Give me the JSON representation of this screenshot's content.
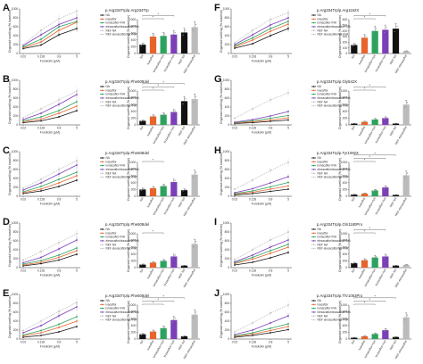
{
  "figure": {
    "x_axis_label": "Forskolin (μM)",
    "y_axis_label": "Organoid swelling (% baseline)",
    "colors": {
      "NA": "#111111",
      "ivacaftor": "#e8642b",
      "lumacaftor+IVA": "#2ca25f",
      "elexacaftor/tezacaftor+IVA": "#7b3fb8",
      "REF": "#bbbbbb"
    }
  },
  "chart_data": [
    {
      "letter": "A",
      "title": "p.Arg334Trp/p.Arg334Trp",
      "type": "line",
      "x_ticks": [
        "0.02",
        "0.128",
        "0.8",
        "5"
      ],
      "series": [
        {
          "name": "NA",
          "values": [
            110,
            190,
            420,
            560
          ]
        },
        {
          "name": "ivacaftor",
          "values": [
            130,
            260,
            520,
            700
          ]
        },
        {
          "name": "lumacaftor+IVA",
          "values": [
            150,
            320,
            600,
            720
          ]
        },
        {
          "name": "elexacaftor/tezacaftor+IVA",
          "values": [
            180,
            420,
            650,
            800
          ]
        },
        {
          "name": "REF",
          "values": [
            200,
            520,
            780,
            950
          ]
        }
      ],
      "bars": [
        260,
        500,
        520,
        560,
        620,
        780
      ],
      "bar_labels": [
        "NA",
        "ivacaftor",
        "lumacaftor+IVA",
        "tezacaftor+IVA",
        "REF NA",
        "REF elexacaftor"
      ],
      "legend": [
        "NA",
        "ivacaftor",
        "lumacaftor+IVA",
        "elexacaftor/tezacaftor+IVA",
        "REF NA",
        "REF elexacaftor/tez+IVA"
      ],
      "line_ylim": [
        0,
        1000
      ],
      "line_yticks": [
        "0",
        "200",
        "400",
        "600",
        "800",
        "1000"
      ],
      "bar_ylim": [
        0,
        1000
      ],
      "bar_yticks": [
        "0",
        "200",
        "400",
        "600",
        "800",
        "1000"
      ],
      "stars": [
        "*",
        "*"
      ]
    },
    {
      "letter": "B",
      "title": "p.Arg334Trp/p.Phe508del",
      "type": "line",
      "x_ticks": [
        "0.02",
        "0.128",
        "0.8",
        "5"
      ],
      "series": [
        {
          "name": "NA",
          "values": [
            50,
            90,
            180,
            320
          ]
        },
        {
          "name": "ivacaftor",
          "values": [
            70,
            130,
            260,
            420
          ]
        },
        {
          "name": "lumacaftor+IVA",
          "values": [
            90,
            180,
            320,
            520
          ]
        },
        {
          "name": "elexacaftor/tezacaftor+IVA",
          "values": [
            120,
            260,
            460,
            680
          ]
        },
        {
          "name": "REF",
          "values": [
            160,
            360,
            560,
            760
          ]
        }
      ],
      "bars": [
        120,
        250,
        300,
        380,
        700,
        760
      ],
      "bar_labels": [
        "NA",
        "ivacaftor",
        "lumacaftor+IVA",
        "tezacaftor+IVA",
        "REF NA",
        "REF elexacaftor"
      ],
      "legend": [
        "NA",
        "ivacaftor",
        "lumacaftor+IVA",
        "elexacaftor/tezacaftor+IVA",
        "REF NA",
        "REF elexacaftor/tez+IVA"
      ],
      "line_ylim": [
        0,
        1000
      ],
      "line_yticks": [
        "0",
        "200",
        "400",
        "600",
        "800",
        "1000"
      ],
      "bar_ylim": [
        0,
        1000
      ],
      "bar_yticks": [
        "0",
        "200",
        "400",
        "600",
        "800",
        "1000"
      ],
      "stars": [
        "*",
        "*",
        "*"
      ]
    },
    {
      "letter": "C",
      "title": "p.Arg334Trp/p.Phe508del",
      "type": "line",
      "x_ticks": [
        "0.02",
        "0.128",
        "0.8",
        "5"
      ],
      "series": [
        {
          "name": "NA",
          "values": [
            60,
            120,
            220,
            360
          ]
        },
        {
          "name": "ivacaftor",
          "values": [
            80,
            160,
            300,
            460
          ]
        },
        {
          "name": "lumacaftor+IVA",
          "values": [
            100,
            220,
            380,
            540
          ]
        },
        {
          "name": "elexacaftor/tezacaftor+IVA",
          "values": [
            140,
            300,
            500,
            700
          ]
        },
        {
          "name": "REF",
          "values": [
            180,
            380,
            600,
            800
          ]
        }
      ],
      "bars": [
        200,
        240,
        300,
        420,
        180,
        640
      ],
      "bar_labels": [
        "NA",
        "ivacaftor",
        "lumacaftor+IVA",
        "tezacaftor+IVA",
        "REF NA",
        "REF elexacaftor"
      ],
      "legend": [
        "NA",
        "ivacaftor",
        "lumacaftor+IVA",
        "elexacaftor/tezacaftor+IVA",
        "REF NA",
        "REF elexacaftor/tez+IVA"
      ],
      "line_ylim": [
        0,
        1000
      ],
      "line_yticks": [
        "0",
        "200",
        "400",
        "600",
        "800",
        "1000"
      ],
      "bar_ylim": [
        0,
        1000
      ],
      "bar_yticks": [
        "0",
        "200",
        "400",
        "600",
        "800",
        "1000"
      ],
      "stars": [
        "*"
      ]
    },
    {
      "letter": "D",
      "title": "p.Arg334Trp/p.Phe508del",
      "type": "line",
      "x_ticks": [
        "0.02",
        "0.128",
        "0.8",
        "5"
      ],
      "series": [
        {
          "name": "NA",
          "values": [
            40,
            90,
            170,
            300
          ]
        },
        {
          "name": "ivacaftor",
          "values": [
            60,
            120,
            230,
            380
          ]
        },
        {
          "name": "lumacaftor+IVA",
          "values": [
            80,
            160,
            280,
            440
          ]
        },
        {
          "name": "elexacaftor/tezacaftor+IVA",
          "values": [
            110,
            230,
            420,
            620
          ]
        },
        {
          "name": "REF",
          "values": [
            170,
            360,
            560,
            760
          ]
        }
      ],
      "bars": [
        90,
        150,
        200,
        330,
        60,
        700
      ],
      "bar_labels": [
        "NA",
        "ivacaftor",
        "lumacaftor+IVA",
        "tezacaftor+IVA",
        "REF NA",
        "REF elexacaftor"
      ],
      "legend": [
        "NA",
        "ivacaftor",
        "lumacaftor+IVA",
        "elexacaftor/tezacaftor+IVA",
        "REF NA",
        "REF elexacaftor/tez+IVA"
      ],
      "line_ylim": [
        0,
        1000
      ],
      "line_yticks": [
        "0",
        "200",
        "400",
        "600",
        "800",
        "1000"
      ],
      "bar_ylim": [
        0,
        1000
      ],
      "bar_yticks": [
        "0",
        "200",
        "400",
        "600",
        "800",
        "1000"
      ],
      "stars": [
        "*"
      ]
    },
    {
      "letter": "E",
      "title": "p.Arg334Trp/p.Phe508del",
      "type": "line",
      "x_ticks": [
        "0.02",
        "0.128",
        "0.8",
        "5"
      ],
      "series": [
        {
          "name": "NA",
          "values": [
            40,
            80,
            160,
            280
          ]
        },
        {
          "name": "ivacaftor",
          "values": [
            70,
            140,
            260,
            400
          ]
        },
        {
          "name": "lumacaftor+IVA",
          "values": [
            90,
            190,
            330,
            500
          ]
        },
        {
          "name": "elexacaftor/tezacaftor+IVA",
          "values": [
            140,
            300,
            520,
            720
          ]
        },
        {
          "name": "REF",
          "values": [
            190,
            400,
            620,
            820
          ]
        }
      ],
      "bars": [
        140,
        220,
        320,
        560,
        80,
        720
      ],
      "bar_labels": [
        "NA",
        "ivacaftor",
        "lumacaftor+IVA",
        "tezacaftor+IVA",
        "REF NA",
        "REF elexacaftor"
      ],
      "legend": [
        "NA",
        "ivacaftor",
        "lumacaftor+IVA",
        "elexacaftor/tezacaftor+IVA",
        "REF NA",
        "REF elexacaftor/tez+IVA"
      ],
      "line_ylim": [
        0,
        1000
      ],
      "line_yticks": [
        "0",
        "200",
        "400",
        "600",
        "800",
        "1000"
      ],
      "bar_ylim": [
        0,
        1000
      ],
      "bar_yticks": [
        "0",
        "200",
        "400",
        "600",
        "800",
        "1000"
      ],
      "stars": [
        "*",
        "*",
        "*"
      ]
    },
    {
      "letter": "F",
      "title": "p.Arg334Trp/p.Arg1162X",
      "type": "line",
      "x_ticks": [
        "0.02",
        "0.128",
        "0.8",
        "5"
      ],
      "series": [
        {
          "name": "NA",
          "values": [
            120,
            220,
            400,
            560
          ]
        },
        {
          "name": "ivacaftor",
          "values": [
            150,
            300,
            500,
            660
          ]
        },
        {
          "name": "lumacaftor+IVA",
          "values": [
            170,
            350,
            560,
            720
          ]
        },
        {
          "name": "elexacaftor/tezacaftor+IVA",
          "values": [
            200,
            420,
            640,
            800
          ]
        },
        {
          "name": "REF",
          "values": [
            240,
            520,
            760,
            920
          ]
        }
      ],
      "bars": [
        150,
        280,
        400,
        420,
        440,
        40
      ],
      "bar_labels": [
        "NA",
        "ivacaftor",
        "lumacaftor+IVA",
        "tezacaftor+IVA",
        "REF NA",
        "REF elexacaftor"
      ],
      "legend": [
        "NA",
        "ivacaftor",
        "lumacaftor+IVA",
        "elexacaftor/tezacaftor+IVA",
        "REF NA",
        "REF elexacaftor/tez+IVA"
      ],
      "line_ylim": [
        0,
        1000
      ],
      "line_yticks": [
        "0",
        "200",
        "400",
        "600",
        "800",
        "1000"
      ],
      "bar_ylim": [
        0,
        600
      ],
      "bar_yticks": [
        "0",
        "100",
        "200",
        "300",
        "400",
        "500",
        "600"
      ],
      "stars": [
        "*",
        "*"
      ]
    },
    {
      "letter": "G",
      "title": "p.Arg334Trp/p.Gly542X",
      "type": "line",
      "x_ticks": [
        "0.02",
        "0.128",
        "0.8",
        "5"
      ],
      "series": [
        {
          "name": "NA",
          "values": [
            30,
            50,
            80,
            110
          ]
        },
        {
          "name": "ivacaftor",
          "values": [
            40,
            70,
            110,
            160
          ]
        },
        {
          "name": "lumacaftor+IVA",
          "values": [
            50,
            90,
            150,
            210
          ]
        },
        {
          "name": "elexacaftor/tezacaftor+IVA",
          "values": [
            60,
            120,
            200,
            300
          ]
        },
        {
          "name": "REF",
          "values": [
            150,
            360,
            560,
            720
          ]
        }
      ],
      "bars": [
        40,
        90,
        160,
        200,
        40,
        600
      ],
      "bar_labels": [
        "NA",
        "ivacaftor",
        "lumacaftor+IVA",
        "tezacaftor+IVA",
        "REF NA",
        "REF elexacaftor"
      ],
      "legend": [
        "NA",
        "ivacaftor",
        "lumacaftor+IVA",
        "elexacaftor/tezacaftor+IVA",
        "REF NA",
        "REF elexacaftor/tez+IVA"
      ],
      "line_ylim": [
        0,
        1000
      ],
      "line_yticks": [
        "0",
        "200",
        "400",
        "600",
        "800",
        "1000"
      ],
      "bar_ylim": [
        0,
        1000
      ],
      "bar_yticks": [
        "0",
        "200",
        "400",
        "600",
        "800",
        "1000"
      ],
      "stars": [
        "*",
        "*"
      ]
    },
    {
      "letter": "H",
      "title": "p.Arg334Trp/p.Tyr1092X",
      "type": "line",
      "x_ticks": [
        "0.02",
        "0.128",
        "0.8",
        "5"
      ],
      "series": [
        {
          "name": "NA",
          "values": [
            30,
            60,
            110,
            160
          ]
        },
        {
          "name": "ivacaftor",
          "values": [
            50,
            90,
            160,
            230
          ]
        },
        {
          "name": "lumacaftor+IVA",
          "values": [
            60,
            120,
            210,
            310
          ]
        },
        {
          "name": "elexacaftor/tezacaftor+IVA",
          "values": [
            80,
            170,
            300,
            440
          ]
        },
        {
          "name": "REF",
          "values": [
            160,
            360,
            580,
            760
          ]
        }
      ],
      "bars": [
        50,
        80,
        170,
        260,
        40,
        620
      ],
      "bar_labels": [
        "NA",
        "ivacaftor",
        "lumacaftor+IVA",
        "tezacaftor+IVA",
        "REF NA",
        "REF elexacaftor"
      ],
      "legend": [
        "NA",
        "ivacaftor",
        "lumacaftor+IVA",
        "elexacaftor/tezacaftor+IVA",
        "REF NA",
        "REF elexacaftor/tez+IVA"
      ],
      "line_ylim": [
        0,
        1000
      ],
      "line_yticks": [
        "0",
        "200",
        "400",
        "600",
        "800",
        "1000"
      ],
      "bar_ylim": [
        0,
        1000
      ],
      "bar_yticks": [
        "0",
        "200",
        "400",
        "600",
        "800",
        "1000"
      ],
      "stars": [
        "*",
        "*",
        "*"
      ]
    },
    {
      "letter": "I",
      "title": "p.Arg334Trp/p.Gln1180Pro",
      "type": "line",
      "x_ticks": [
        "0.02",
        "0.128",
        "0.8",
        "5"
      ],
      "series": [
        {
          "name": "NA",
          "values": [
            60,
            120,
            220,
            340
          ]
        },
        {
          "name": "ivacaftor",
          "values": [
            90,
            190,
            320,
            460
          ]
        },
        {
          "name": "lumacaftor+IVA",
          "values": [
            110,
            230,
            380,
            520
          ]
        },
        {
          "name": "elexacaftor/tezacaftor+IVA",
          "values": [
            130,
            280,
            460,
            620
          ]
        },
        {
          "name": "REF",
          "values": [
            180,
            400,
            620,
            800
          ]
        }
      ],
      "bars": [
        130,
        220,
        300,
        330,
        60,
        80
      ],
      "bar_labels": [
        "NA",
        "ivacaftor",
        "lumacaftor+IVA",
        "tezacaftor+IVA",
        "REF NA",
        "REF elexacaftor"
      ],
      "legend": [
        "NA",
        "ivacaftor",
        "lumacaftor+IVA",
        "elexacaftor/tezacaftor+IVA",
        "REF NA",
        "REF elexacaftor/tez+IVA"
      ],
      "line_ylim": [
        0,
        1000
      ],
      "line_yticks": [
        "0",
        "200",
        "400",
        "600",
        "800",
        "1000"
      ],
      "bar_ylim": [
        0,
        1000
      ],
      "bar_yticks": [
        "0",
        "200",
        "400",
        "600",
        "800",
        "1000"
      ],
      "stars": [
        "*",
        "*"
      ]
    },
    {
      "letter": "J",
      "title": "p.Arg334Trp/p.Thr1053Pro",
      "type": "line",
      "x_ticks": [
        "0.02",
        "0.128",
        "0.8",
        "5"
      ],
      "series": [
        {
          "name": "NA",
          "values": [
            40,
            80,
            140,
            210
          ]
        },
        {
          "name": "ivacaftor",
          "values": [
            60,
            110,
            190,
            280
          ]
        },
        {
          "name": "lumacaftor+IVA",
          "values": [
            70,
            140,
            240,
            340
          ]
        },
        {
          "name": "elexacaftor/tezacaftor+IVA",
          "values": [
            100,
            200,
            360,
            520
          ]
        },
        {
          "name": "REF",
          "values": [
            160,
            360,
            580,
            760
          ]
        }
      ],
      "bars": [
        40,
        80,
        150,
        260,
        60,
        640
      ],
      "bar_labels": [
        "NA",
        "ivacaftor",
        "lumacaftor+IVA",
        "tezacaftor+IVA",
        "REF NA",
        "REF elexacaftor"
      ],
      "legend": [
        "NA",
        "ivacaftor",
        "lumacaftor+IVA",
        "elexacaftor/tezacaftor+IVA",
        "REF NA",
        "REF elexacaftor/tez+IVA"
      ],
      "line_ylim": [
        0,
        1000
      ],
      "line_yticks": [
        "0",
        "200",
        "400",
        "600",
        "800",
        "1000"
      ],
      "bar_ylim": [
        0,
        1000
      ],
      "bar_yticks": [
        "0",
        "200",
        "400",
        "600",
        "800",
        "1000"
      ],
      "stars": [
        "*",
        "*",
        "*"
      ]
    }
  ]
}
